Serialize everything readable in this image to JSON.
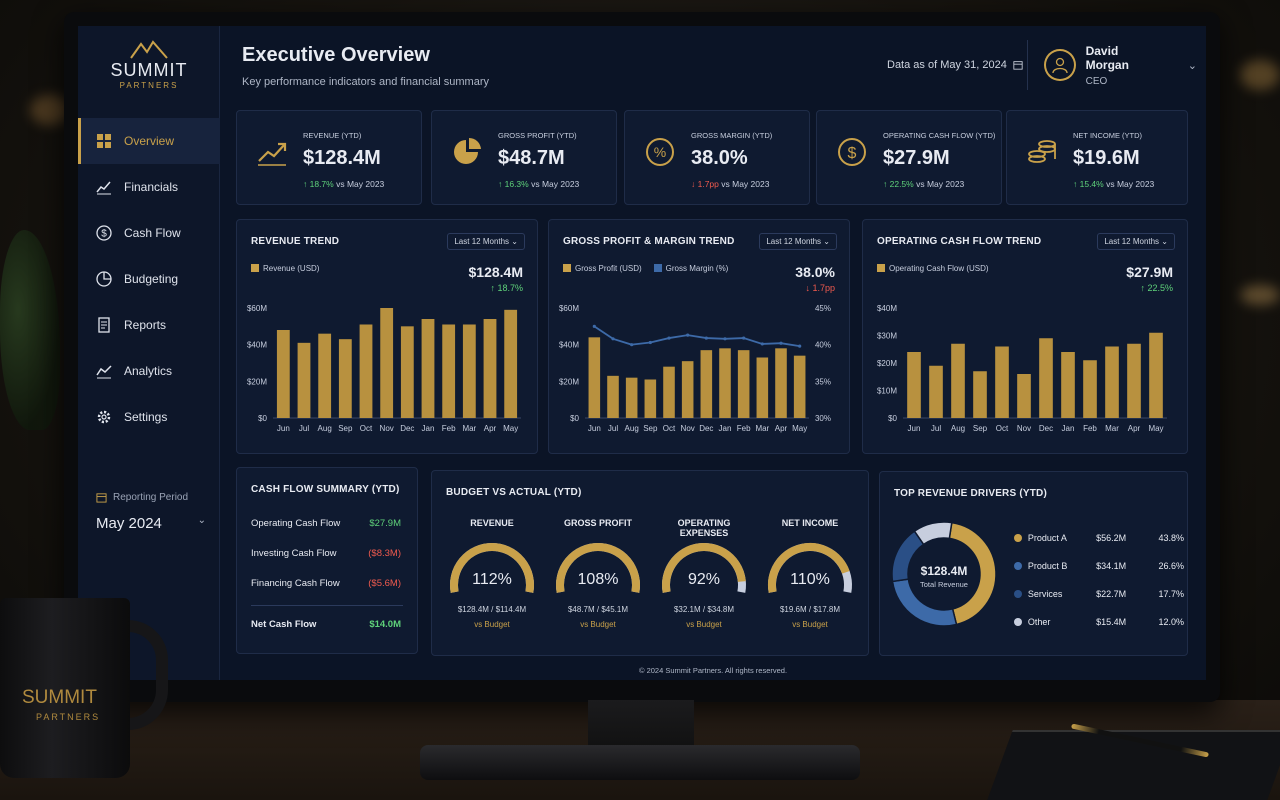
{
  "brand": {
    "name": "SUMMIT",
    "tagline": "PARTNERS"
  },
  "nav": [
    {
      "label": "Overview",
      "icon": "grid-icon",
      "active": true
    },
    {
      "label": "Financials",
      "icon": "trend-line-icon"
    },
    {
      "label": "Cash Flow",
      "icon": "dollar-circle-icon"
    },
    {
      "label": "Budgeting",
      "icon": "pie-icon"
    },
    {
      "label": "Reports",
      "icon": "document-icon"
    },
    {
      "label": "Analytics",
      "icon": "analytics-icon"
    },
    {
      "label": "Settings",
      "icon": "gear-icon"
    }
  ],
  "period": {
    "label": "Reporting Period",
    "value": "May 2024"
  },
  "header": {
    "title": "Executive Overview",
    "subtitle": "Key performance indicators and financial summary",
    "as_of": "Data as of May 31, 2024"
  },
  "user": {
    "name": "David Morgan",
    "role": "CEO"
  },
  "kpis": [
    {
      "label": "REVENUE (YTD)",
      "value": "$128.4M",
      "delta": "↑ 18.7%",
      "direction": "up",
      "compare": "vs May 2023",
      "icon": "trend-up-icon"
    },
    {
      "label": "GROSS PROFIT (YTD)",
      "value": "$48.7M",
      "delta": "↑ 16.3%",
      "direction": "up",
      "compare": "vs May 2023",
      "icon": "pie-chart-icon"
    },
    {
      "label": "GROSS MARGIN (YTD)",
      "value": "38.0%",
      "delta": "↓ 1.7pp",
      "direction": "down",
      "compare": "vs May 2023",
      "icon": "percent-icon"
    },
    {
      "label": "OPERATING CASH FLOW (YTD)",
      "value": "$27.9M",
      "delta": "↑ 22.5%",
      "direction": "up",
      "compare": "vs May 2023",
      "icon": "dollar-icon"
    },
    {
      "label": "NET INCOME (YTD)",
      "value": "$19.6M",
      "delta": "↑ 15.4%",
      "direction": "up",
      "compare": "vs May 2023",
      "icon": "coins-icon"
    }
  ],
  "panels": {
    "revenue_trend": {
      "title": "REVENUE TREND",
      "range": "Last 12 Months",
      "legend": "Revenue (USD)",
      "value": "$128.4M",
      "delta": "↑ 18.7%"
    },
    "gp_trend": {
      "title": "GROSS PROFIT & MARGIN TREND",
      "range": "Last 12 Months",
      "legend1": "Gross Profit (USD)",
      "legend2": "Gross Margin (%)",
      "value": "38.0%",
      "delta": "↓ 1.7pp"
    },
    "ocf_trend": {
      "title": "OPERATING CASH FLOW TREND",
      "range": "Last 12 Months",
      "legend": "Operating Cash Flow (USD)",
      "value": "$27.9M",
      "delta": "↑ 22.5%"
    },
    "cash_flow": {
      "title": "CASH FLOW SUMMARY (YTD)",
      "rows": [
        {
          "label": "Operating Cash Flow",
          "value": "$27.9M",
          "tone": "pos"
        },
        {
          "label": "Investing Cash Flow",
          "value": "($8.3M)",
          "tone": "neg"
        },
        {
          "label": "Financing Cash Flow",
          "value": "($5.6M)",
          "tone": "neg"
        }
      ],
      "net_label": "Net Cash Flow",
      "net_value": "$14.0M"
    },
    "budget": {
      "title": "BUDGET VS ACTUAL (YTD)",
      "gauges": [
        {
          "label": "REVENUE",
          "pct": "112%",
          "detail": "$128.4M / $114.4M",
          "note": "vs Budget",
          "fill": 1.0
        },
        {
          "label": "GROSS PROFIT",
          "pct": "108%",
          "detail": "$48.7M / $45.1M",
          "note": "vs Budget",
          "fill": 1.0
        },
        {
          "label": "OPERATING EXPENSES",
          "pct": "92%",
          "detail": "$32.1M / $34.8M",
          "note": "vs Budget",
          "fill": 0.92
        },
        {
          "label": "NET INCOME",
          "pct": "110%",
          "detail": "$19.6M / $17.8M",
          "note": "vs Budget",
          "fill": 0.85
        }
      ]
    },
    "drivers": {
      "title": "TOP REVENUE DRIVERS (YTD)",
      "center_value": "$128.4M",
      "center_label": "Total Revenue",
      "items": [
        {
          "name": "Product A",
          "value": "$56.2M",
          "pct": "43.8%",
          "color": "#c9a14a"
        },
        {
          "name": "Product B",
          "value": "$34.1M",
          "pct": "26.6%",
          "color": "#3d6aa8"
        },
        {
          "name": "Services",
          "value": "$22.7M",
          "pct": "17.7%",
          "color": "#2a4f86"
        },
        {
          "name": "Other",
          "value": "$15.4M",
          "pct": "12.0%",
          "color": "#c7cede"
        }
      ]
    }
  },
  "chart_data": [
    {
      "type": "bar",
      "title": "REVENUE TREND",
      "categories": [
        "Jun",
        "Jul",
        "Aug",
        "Sep",
        "Oct",
        "Nov",
        "Dec",
        "Jan",
        "Feb",
        "Mar",
        "Apr",
        "May"
      ],
      "series": [
        {
          "name": "Revenue (USD)",
          "values": [
            48,
            41,
            46,
            43,
            51,
            60,
            50,
            54,
            51,
            51,
            54,
            59
          ]
        }
      ],
      "y_ticks": [
        "$0",
        "$20M",
        "$40M",
        "$60M"
      ],
      "ylim": [
        0,
        60
      ]
    },
    {
      "type": "bar+line",
      "title": "GROSS PROFIT & MARGIN TREND",
      "categories": [
        "Jun",
        "Jul",
        "Aug",
        "Sep",
        "Oct",
        "Nov",
        "Dec",
        "Jan",
        "Feb",
        "Mar",
        "Apr",
        "May"
      ],
      "series": [
        {
          "name": "Gross Profit (USD)",
          "values": [
            44,
            23,
            22,
            21,
            28,
            31,
            37,
            38,
            37,
            33,
            38,
            34
          ]
        },
        {
          "name": "Gross Margin (%)",
          "values": [
            42.5,
            40.8,
            40.0,
            40.3,
            40.9,
            41.3,
            40.9,
            40.8,
            40.9,
            40.1,
            40.2,
            39.8
          ]
        }
      ],
      "y_ticks": [
        "$0",
        "$20M",
        "$40M",
        "$60M"
      ],
      "y2_ticks": [
        "30%",
        "35%",
        "40%",
        "45%"
      ],
      "ylim": [
        0,
        60
      ],
      "y2lim": [
        30,
        45
      ]
    },
    {
      "type": "bar",
      "title": "OPERATING CASH FLOW TREND",
      "categories": [
        "Jun",
        "Jul",
        "Aug",
        "Sep",
        "Oct",
        "Nov",
        "Dec",
        "Jan",
        "Feb",
        "Mar",
        "Apr",
        "May"
      ],
      "series": [
        {
          "name": "Operating Cash Flow (USD)",
          "values": [
            24,
            19,
            27,
            17,
            26,
            16,
            29,
            24,
            21,
            26,
            27,
            31
          ]
        }
      ],
      "y_ticks": [
        "$0",
        "$10M",
        "$20M",
        "$30M",
        "$40M"
      ],
      "ylim": [
        0,
        40
      ]
    }
  ],
  "footer": "© 2024 Summit Partners. All rights reserved.",
  "mug": {
    "brand": "SUMMIT",
    "tagline": "PARTNERS"
  }
}
